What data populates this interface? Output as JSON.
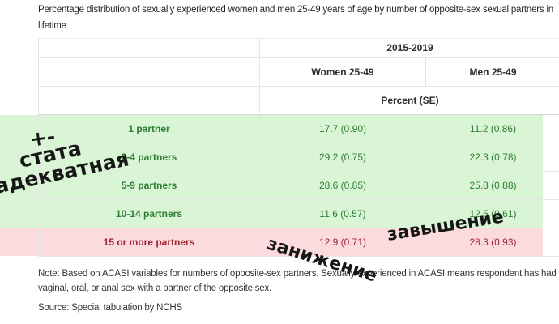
{
  "title": "Percentage distribution of sexually experienced women and men 25-49 years of age by number of opposite-sex sexual partners in lifetime",
  "table": {
    "period_header": "2015-2019",
    "women_header": "Women 25-49",
    "men_header": "Men 25-49",
    "unit_header": "Percent (SE)",
    "rows": [
      {
        "label": "1 partner",
        "women": "17.7 (0.90)",
        "men": "11.2 (0.86)"
      },
      {
        "label": "2-4 partners",
        "women": "29.2 (0.75)",
        "men": "22.3 (0.78)"
      },
      {
        "label": "5-9 partners",
        "women": "28.6 (0.85)",
        "men": "25.8 (0.88)"
      },
      {
        "label": "10-14 partners",
        "women": "11.6 (0.57)",
        "men": "12.5 (0.61)"
      },
      {
        "label": "15 or more partners",
        "women": "12.9 (0.71)",
        "men": "28.3 (0.93)"
      }
    ]
  },
  "annotations": {
    "plus_minus": "+-",
    "left_line1": "стата",
    "left_line2": "адекватная",
    "women_flag": "занижение",
    "men_flag": "завышение"
  },
  "note": "Note: Based on ACASI variables for numbers of opposite-sex partners. Sexually experienced in ACASI means respondent has had vaginal, oral, or anal sex with a partner of the opposite sex.",
  "source": "Source: Special tabulation by NCHS",
  "colors": {
    "highlight_green_bg": "#e1f5dd",
    "highlight_green_text": "#2e7d32",
    "highlight_red_bg": "#fbdee1",
    "highlight_red_text": "#a02433",
    "header_text": "#2d2d2d",
    "annotation_ink": "#161616",
    "border": "#e6e6e6"
  },
  "chart_data": {
    "type": "table",
    "title": "Percentage distribution of sexually experienced women and men 25-49 years of age by number of opposite-sex sexual partners in lifetime",
    "period": "2015-2019",
    "unit": "Percent (SE)",
    "categories": [
      "1 partner",
      "2-4 partners",
      "5-9 partners",
      "10-14 partners",
      "15 or more partners"
    ],
    "series": [
      {
        "name": "Women 25-49",
        "percent": [
          17.7,
          29.2,
          28.6,
          11.6,
          12.9
        ],
        "se": [
          0.9,
          0.75,
          0.85,
          0.57,
          0.71
        ]
      },
      {
        "name": "Men 25-49",
        "percent": [
          11.2,
          22.3,
          25.8,
          12.5,
          28.3
        ],
        "se": [
          0.86,
          0.78,
          0.88,
          0.61,
          0.93
        ]
      }
    ],
    "row_highlights": [
      "green",
      "green",
      "green",
      "green",
      "red"
    ]
  }
}
